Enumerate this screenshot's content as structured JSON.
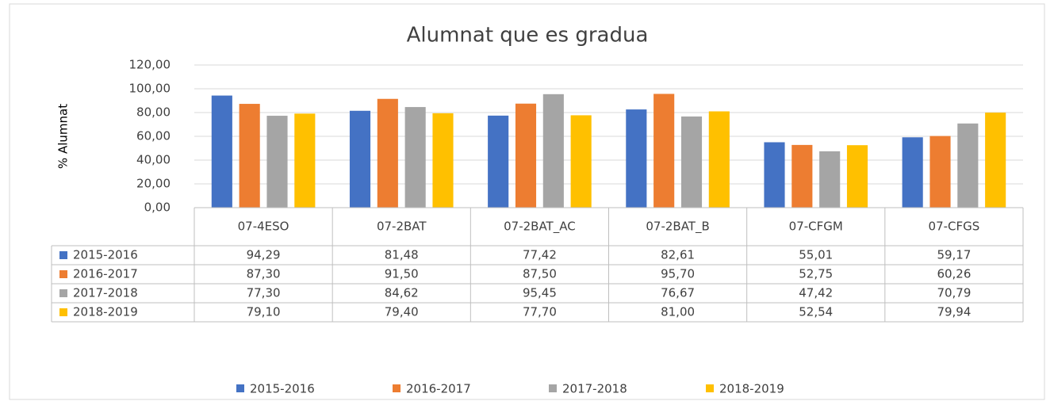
{
  "chart_data": {
    "type": "bar",
    "title": "Alumnat que es gradua",
    "y_label": "% Alumnat",
    "categories": [
      "07-4ESO",
      "07-2BAT",
      "07-2BAT_AC",
      "07-2BAT_B",
      "07-CFGM",
      "07-CFGS"
    ],
    "series": [
      {
        "name": "2015-2016",
        "color": "#4472c4",
        "values": [
          94.29,
          81.48,
          77.42,
          82.61,
          55.01,
          59.17
        ],
        "value_labels": [
          "94,29",
          "81,48",
          "77,42",
          "82,61",
          "55,01",
          "59,17"
        ]
      },
      {
        "name": "2016-2017",
        "color": "#ed7d31",
        "values": [
          87.3,
          91.5,
          87.5,
          95.7,
          52.75,
          60.26
        ],
        "value_labels": [
          "87,30",
          "91,50",
          "87,50",
          "95,70",
          "52,75",
          "60,26"
        ]
      },
      {
        "name": "2017-2018",
        "color": "#a5a5a5",
        "values": [
          77.3,
          84.62,
          95.45,
          76.67,
          47.42,
          70.79
        ],
        "value_labels": [
          "77,30",
          "84,62",
          "95,45",
          "76,67",
          "47,42",
          "70,79"
        ]
      },
      {
        "name": "2018-2019",
        "color": "#ffc000",
        "values": [
          79.1,
          79.4,
          77.7,
          81.0,
          52.54,
          79.94
        ],
        "value_labels": [
          "79,10",
          "79,40",
          "77,70",
          "81,00",
          "52,54",
          "79,94"
        ]
      }
    ],
    "ylim": [
      0,
      120
    ],
    "yticks": [
      {
        "value": 0,
        "label": "0,00"
      },
      {
        "value": 20,
        "label": "20,00"
      },
      {
        "value": 40,
        "label": "40,00"
      },
      {
        "value": 60,
        "label": "60,00"
      },
      {
        "value": 80,
        "label": "80,00"
      },
      {
        "value": 100,
        "label": "100,00"
      },
      {
        "value": 120,
        "label": "120,00"
      }
    ],
    "grid": true,
    "legend": "bottom"
  }
}
